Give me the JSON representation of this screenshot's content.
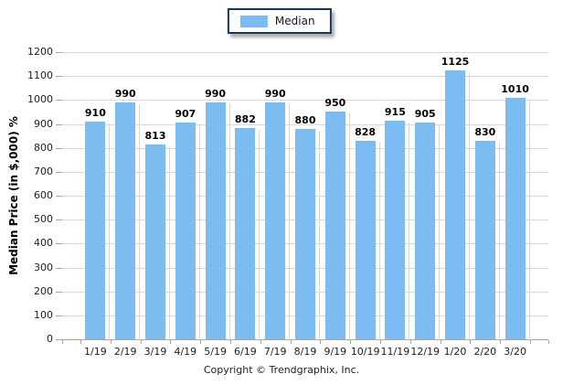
{
  "legend": {
    "label": "Median",
    "swatch_color": "#7CBCF0"
  },
  "footer": {
    "copyright": "Copyright © Trendgraphix, Inc."
  },
  "colors": {
    "bar_fill": "#7CBCF0",
    "legend_border": "#17375E",
    "gridline": "#D9D9D9",
    "axis_line": "#A6A6A6",
    "bar_shadow": "#D6D6D6"
  },
  "chart_data": {
    "type": "bar",
    "title": "",
    "xlabel": "",
    "ylabel": "Median Price (in $,000) %",
    "categories": [
      "1/19",
      "2/19",
      "3/19",
      "4/19",
      "5/19",
      "6/19",
      "7/19",
      "8/19",
      "9/19",
      "10/19",
      "11/19",
      "12/19",
      "1/20",
      "2/20",
      "3/20"
    ],
    "series": [
      {
        "name": "Median",
        "values": [
          910,
          990,
          813,
          907,
          990,
          882,
          990,
          880,
          950,
          828,
          915,
          905,
          1125,
          830,
          1010
        ]
      }
    ],
    "ylim": [
      0,
      1200
    ],
    "ytick_interval": 100,
    "grid": true,
    "legend_position": "top-center",
    "value_labels": true
  }
}
